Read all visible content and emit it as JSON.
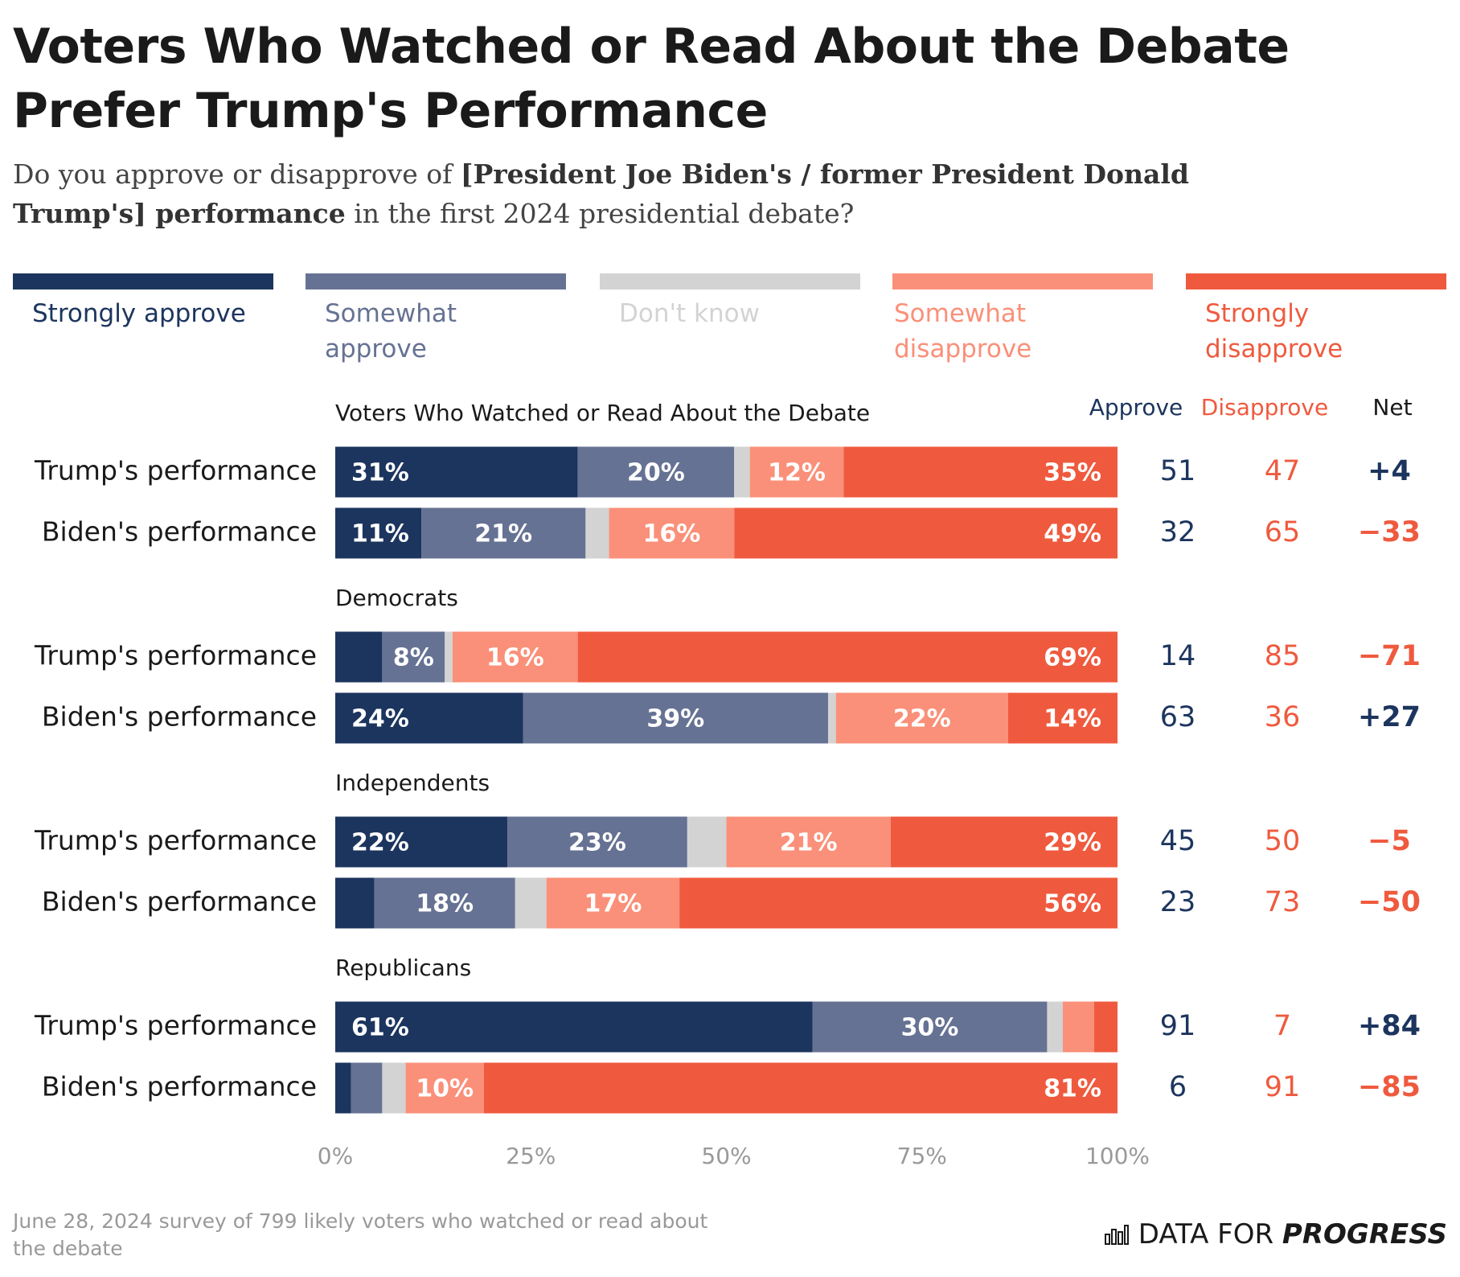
{
  "chart_data": {
    "type": "stacked-bar-horizontal",
    "title": "Voters Who Watched or Read About the Debate Prefer Trump's Performance",
    "subtitle": [
      {
        "text": "Do you approve or disapprove of ",
        "bold": false
      },
      {
        "text": "[President Joe Biden's / former President Donald Trump's] performance",
        "bold": true
      },
      {
        "text": " in the first 2024 presidential debate?",
        "bold": false
      }
    ],
    "groups": [
      {
        "name": "Voters Who Watched or Read About the Debate",
        "categories": [
          "Trump's performance",
          "Biden's performance"
        ]
      },
      {
        "name": "Democrats",
        "categories": [
          "Trump's performance",
          "Biden's performance"
        ]
      },
      {
        "name": "Independents",
        "categories": [
          "Trump's performance",
          "Biden's performance"
        ]
      },
      {
        "name": "Republicans",
        "categories": [
          "Trump's performance",
          "Biden's performance"
        ]
      }
    ],
    "series": [
      {
        "name": "Strongly approve",
        "color": "#1c355e",
        "values": [
          31,
          11,
          6,
          24,
          22,
          5,
          61,
          2
        ],
        "value_labels": [
          "31%",
          "11%",
          null,
          "24%",
          "22%",
          null,
          "61%",
          null
        ]
      },
      {
        "name": "Somewhat approve",
        "color": "#667293",
        "values": [
          20,
          21,
          8,
          39,
          23,
          18,
          30,
          4
        ],
        "value_labels": [
          "20%",
          "21%",
          "8%",
          "39%",
          "23%",
          "18%",
          "30%",
          null
        ]
      },
      {
        "name": "Don't know",
        "color": "#d3d3d3",
        "values": [
          2,
          3,
          1,
          1,
          5,
          4,
          2,
          3
        ]
      },
      {
        "name": "Somewhat disapprove",
        "color": "#fa9079",
        "values": [
          12,
          16,
          16,
          22,
          21,
          17,
          4,
          10
        ],
        "value_labels": [
          "12%",
          "16%",
          "16%",
          "22%",
          "21%",
          "17%",
          null,
          "10%"
        ]
      },
      {
        "name": "Strongly disapprove",
        "color": "#ef5a3e",
        "values": [
          35,
          49,
          69,
          14,
          29,
          56,
          3,
          81
        ],
        "value_labels": [
          "35%",
          "49%",
          "69%",
          "14%",
          "29%",
          "56%",
          null,
          "81%"
        ]
      }
    ],
    "columns": [
      {
        "name": "Approve",
        "color": "#1c355e",
        "values": [
          51,
          32,
          14,
          63,
          45,
          23,
          91,
          6
        ]
      },
      {
        "name": "Disapprove",
        "color": "#ef5a3e",
        "values": [
          47,
          65,
          85,
          36,
          50,
          73,
          7,
          91
        ]
      },
      {
        "name": "Net",
        "positive_color": "#1c355e",
        "negative_color": "#ef5a3e",
        "values": [
          4,
          -33,
          -71,
          27,
          -5,
          -50,
          84,
          -85
        ],
        "value_labels": [
          "+4",
          "−33",
          "−71",
          "+27",
          "−5",
          "−50",
          "+84",
          "−85"
        ]
      }
    ],
    "xlim": [
      0,
      100
    ],
    "xticks": [
      {
        "value": 0,
        "label": "0%"
      },
      {
        "value": 25,
        "label": "25%"
      },
      {
        "value": 50,
        "label": "50%"
      },
      {
        "value": 75,
        "label": "75%"
      },
      {
        "value": 100,
        "label": "100%"
      }
    ],
    "footnote": "June 28, 2024 survey of 799 likely voters who watched or read about the debate",
    "logo": [
      "DATA FOR",
      "PROGRESS"
    ]
  }
}
